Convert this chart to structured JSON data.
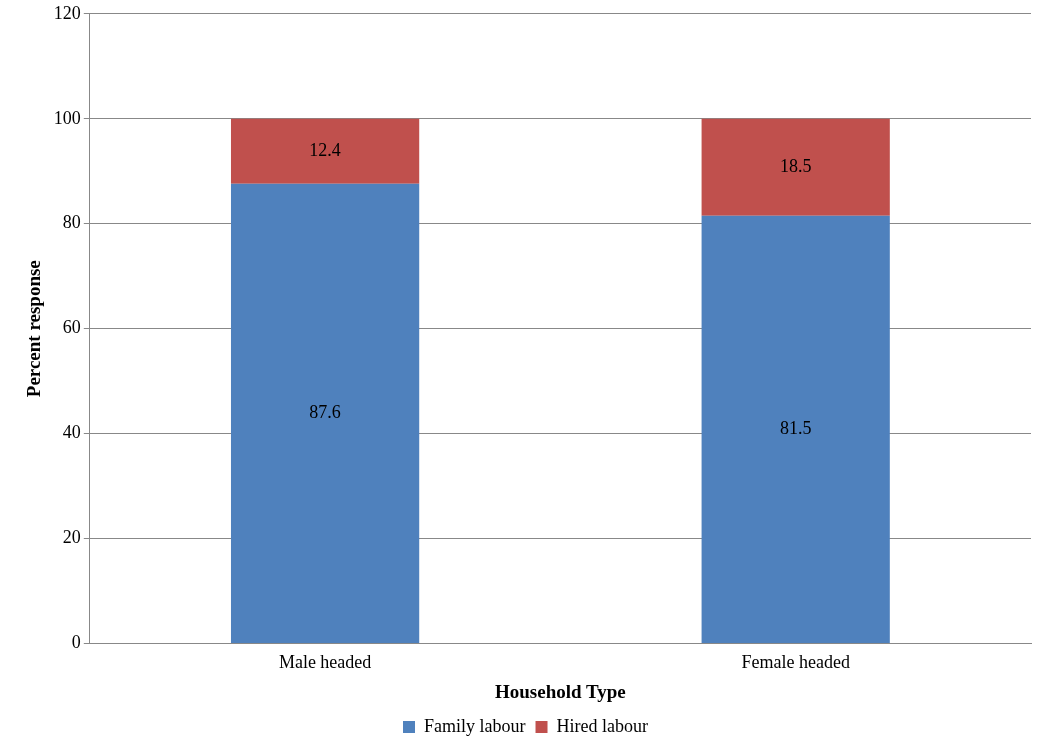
{
  "chart_data": {
    "type": "bar",
    "stacked": true,
    "xlabel": "Household Type",
    "ylabel": "Percent response",
    "categories": [
      "Male headed",
      "Female headed"
    ],
    "series": [
      {
        "name": "Family labour",
        "color": "#4f81bd",
        "values": [
          87.6,
          81.5
        ]
      },
      {
        "name": "Hired labour",
        "color": "#c0504d",
        "values": [
          12.4,
          18.5
        ]
      }
    ],
    "ylim": [
      0,
      120
    ],
    "yticks": [
      0,
      20,
      40,
      60,
      80,
      100,
      120
    ],
    "grid": "y",
    "legend": "bottom",
    "data_labels": true
  }
}
